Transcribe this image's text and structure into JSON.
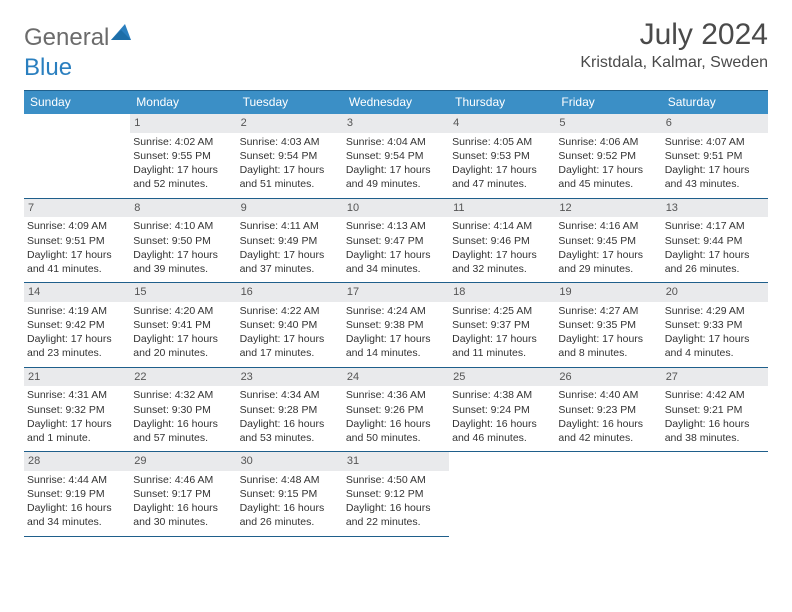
{
  "logo": {
    "part1": "General",
    "part2": "Blue"
  },
  "title": "July 2024",
  "location": "Kristdala, Kalmar, Sweden",
  "colors": {
    "header_bg": "#3b8fc6",
    "header_text": "#ffffff",
    "border": "#1f5f8b",
    "daynum_bg": "#e9eaec",
    "text": "#333333",
    "logo_grey": "#6b6b6b",
    "logo_blue": "#2a7fbf",
    "background": "#ffffff"
  },
  "dayHeaders": [
    "Sunday",
    "Monday",
    "Tuesday",
    "Wednesday",
    "Thursday",
    "Friday",
    "Saturday"
  ],
  "weeks": [
    [
      null,
      {
        "n": "1",
        "sr": "Sunrise: 4:02 AM",
        "ss": "Sunset: 9:55 PM",
        "d1": "Daylight: 17 hours",
        "d2": "and 52 minutes."
      },
      {
        "n": "2",
        "sr": "Sunrise: 4:03 AM",
        "ss": "Sunset: 9:54 PM",
        "d1": "Daylight: 17 hours",
        "d2": "and 51 minutes."
      },
      {
        "n": "3",
        "sr": "Sunrise: 4:04 AM",
        "ss": "Sunset: 9:54 PM",
        "d1": "Daylight: 17 hours",
        "d2": "and 49 minutes."
      },
      {
        "n": "4",
        "sr": "Sunrise: 4:05 AM",
        "ss": "Sunset: 9:53 PM",
        "d1": "Daylight: 17 hours",
        "d2": "and 47 minutes."
      },
      {
        "n": "5",
        "sr": "Sunrise: 4:06 AM",
        "ss": "Sunset: 9:52 PM",
        "d1": "Daylight: 17 hours",
        "d2": "and 45 minutes."
      },
      {
        "n": "6",
        "sr": "Sunrise: 4:07 AM",
        "ss": "Sunset: 9:51 PM",
        "d1": "Daylight: 17 hours",
        "d2": "and 43 minutes."
      }
    ],
    [
      {
        "n": "7",
        "sr": "Sunrise: 4:09 AM",
        "ss": "Sunset: 9:51 PM",
        "d1": "Daylight: 17 hours",
        "d2": "and 41 minutes."
      },
      {
        "n": "8",
        "sr": "Sunrise: 4:10 AM",
        "ss": "Sunset: 9:50 PM",
        "d1": "Daylight: 17 hours",
        "d2": "and 39 minutes."
      },
      {
        "n": "9",
        "sr": "Sunrise: 4:11 AM",
        "ss": "Sunset: 9:49 PM",
        "d1": "Daylight: 17 hours",
        "d2": "and 37 minutes."
      },
      {
        "n": "10",
        "sr": "Sunrise: 4:13 AM",
        "ss": "Sunset: 9:47 PM",
        "d1": "Daylight: 17 hours",
        "d2": "and 34 minutes."
      },
      {
        "n": "11",
        "sr": "Sunrise: 4:14 AM",
        "ss": "Sunset: 9:46 PM",
        "d1": "Daylight: 17 hours",
        "d2": "and 32 minutes."
      },
      {
        "n": "12",
        "sr": "Sunrise: 4:16 AM",
        "ss": "Sunset: 9:45 PM",
        "d1": "Daylight: 17 hours",
        "d2": "and 29 minutes."
      },
      {
        "n": "13",
        "sr": "Sunrise: 4:17 AM",
        "ss": "Sunset: 9:44 PM",
        "d1": "Daylight: 17 hours",
        "d2": "and 26 minutes."
      }
    ],
    [
      {
        "n": "14",
        "sr": "Sunrise: 4:19 AM",
        "ss": "Sunset: 9:42 PM",
        "d1": "Daylight: 17 hours",
        "d2": "and 23 minutes."
      },
      {
        "n": "15",
        "sr": "Sunrise: 4:20 AM",
        "ss": "Sunset: 9:41 PM",
        "d1": "Daylight: 17 hours",
        "d2": "and 20 minutes."
      },
      {
        "n": "16",
        "sr": "Sunrise: 4:22 AM",
        "ss": "Sunset: 9:40 PM",
        "d1": "Daylight: 17 hours",
        "d2": "and 17 minutes."
      },
      {
        "n": "17",
        "sr": "Sunrise: 4:24 AM",
        "ss": "Sunset: 9:38 PM",
        "d1": "Daylight: 17 hours",
        "d2": "and 14 minutes."
      },
      {
        "n": "18",
        "sr": "Sunrise: 4:25 AM",
        "ss": "Sunset: 9:37 PM",
        "d1": "Daylight: 17 hours",
        "d2": "and 11 minutes."
      },
      {
        "n": "19",
        "sr": "Sunrise: 4:27 AM",
        "ss": "Sunset: 9:35 PM",
        "d1": "Daylight: 17 hours",
        "d2": "and 8 minutes."
      },
      {
        "n": "20",
        "sr": "Sunrise: 4:29 AM",
        "ss": "Sunset: 9:33 PM",
        "d1": "Daylight: 17 hours",
        "d2": "and 4 minutes."
      }
    ],
    [
      {
        "n": "21",
        "sr": "Sunrise: 4:31 AM",
        "ss": "Sunset: 9:32 PM",
        "d1": "Daylight: 17 hours",
        "d2": "and 1 minute."
      },
      {
        "n": "22",
        "sr": "Sunrise: 4:32 AM",
        "ss": "Sunset: 9:30 PM",
        "d1": "Daylight: 16 hours",
        "d2": "and 57 minutes."
      },
      {
        "n": "23",
        "sr": "Sunrise: 4:34 AM",
        "ss": "Sunset: 9:28 PM",
        "d1": "Daylight: 16 hours",
        "d2": "and 53 minutes."
      },
      {
        "n": "24",
        "sr": "Sunrise: 4:36 AM",
        "ss": "Sunset: 9:26 PM",
        "d1": "Daylight: 16 hours",
        "d2": "and 50 minutes."
      },
      {
        "n": "25",
        "sr": "Sunrise: 4:38 AM",
        "ss": "Sunset: 9:24 PM",
        "d1": "Daylight: 16 hours",
        "d2": "and 46 minutes."
      },
      {
        "n": "26",
        "sr": "Sunrise: 4:40 AM",
        "ss": "Sunset: 9:23 PM",
        "d1": "Daylight: 16 hours",
        "d2": "and 42 minutes."
      },
      {
        "n": "27",
        "sr": "Sunrise: 4:42 AM",
        "ss": "Sunset: 9:21 PM",
        "d1": "Daylight: 16 hours",
        "d2": "and 38 minutes."
      }
    ],
    [
      {
        "n": "28",
        "sr": "Sunrise: 4:44 AM",
        "ss": "Sunset: 9:19 PM",
        "d1": "Daylight: 16 hours",
        "d2": "and 34 minutes."
      },
      {
        "n": "29",
        "sr": "Sunrise: 4:46 AM",
        "ss": "Sunset: 9:17 PM",
        "d1": "Daylight: 16 hours",
        "d2": "and 30 minutes."
      },
      {
        "n": "30",
        "sr": "Sunrise: 4:48 AM",
        "ss": "Sunset: 9:15 PM",
        "d1": "Daylight: 16 hours",
        "d2": "and 26 minutes."
      },
      {
        "n": "31",
        "sr": "Sunrise: 4:50 AM",
        "ss": "Sunset: 9:12 PM",
        "d1": "Daylight: 16 hours",
        "d2": "and 22 minutes."
      },
      null,
      null,
      null
    ]
  ]
}
